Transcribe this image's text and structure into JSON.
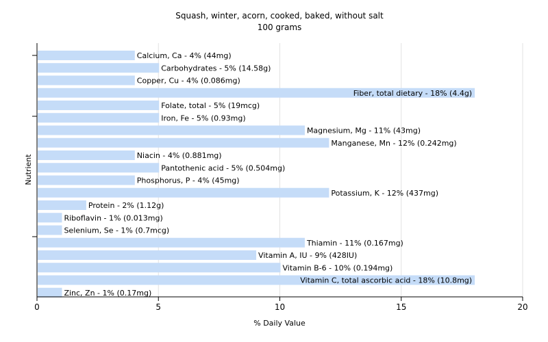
{
  "chart_data": {
    "type": "bar",
    "orientation": "horizontal",
    "title": "Squash, winter, acorn, cooked, baked, without salt",
    "subtitle": "100 grams",
    "xlabel": "% Daily Value",
    "ylabel": "Nutrient",
    "xlim": [
      0,
      20
    ],
    "xticks": [
      0,
      5,
      10,
      15,
      20
    ],
    "grid": true,
    "bar_color": "#c5dcf8",
    "categories": [
      "Calcium, Ca",
      "Carbohydrates",
      "Copper, Cu",
      "Fiber, total dietary",
      "Folate, total",
      "Iron, Fe",
      "Magnesium, Mg",
      "Manganese, Mn",
      "Niacin",
      "Pantothenic acid",
      "Phosphorus, P",
      "Potassium, K",
      "Protein",
      "Riboflavin",
      "Selenium, Se",
      "Thiamin",
      "Vitamin A, IU",
      "Vitamin B-6",
      "Vitamin C, total ascorbic acid",
      "Zinc, Zn"
    ],
    "values": [
      4,
      5,
      4,
      18,
      5,
      5,
      11,
      12,
      4,
      5,
      4,
      12,
      2,
      1,
      1,
      11,
      9,
      10,
      18,
      1
    ],
    "labels": [
      "Calcium, Ca - 4% (44mg)",
      "Carbohydrates - 5% (14.58g)",
      "Copper, Cu - 4% (0.086mg)",
      "Fiber, total dietary - 18% (4.4g)",
      "Folate, total - 5% (19mcg)",
      "Iron, Fe - 5% (0.93mg)",
      "Magnesium, Mg - 11% (43mg)",
      "Manganese, Mn - 12% (0.242mg)",
      "Niacin - 4% (0.881mg)",
      "Pantothenic acid - 5% (0.504mg)",
      "Phosphorus, P - 4% (45mg)",
      "Potassium, K - 12% (437mg)",
      "Protein - 2% (1.12g)",
      "Riboflavin - 1% (0.013mg)",
      "Selenium, Se - 1% (0.7mcg)",
      "Thiamin - 11% (0.167mg)",
      "Vitamin A, IU - 9% (428IU)",
      "Vitamin B-6 - 10% (0.194mg)",
      "Vitamin C, total ascorbic acid - 18% (10.8mg)",
      "Zinc, Zn - 1% (0.17mg)"
    ]
  }
}
